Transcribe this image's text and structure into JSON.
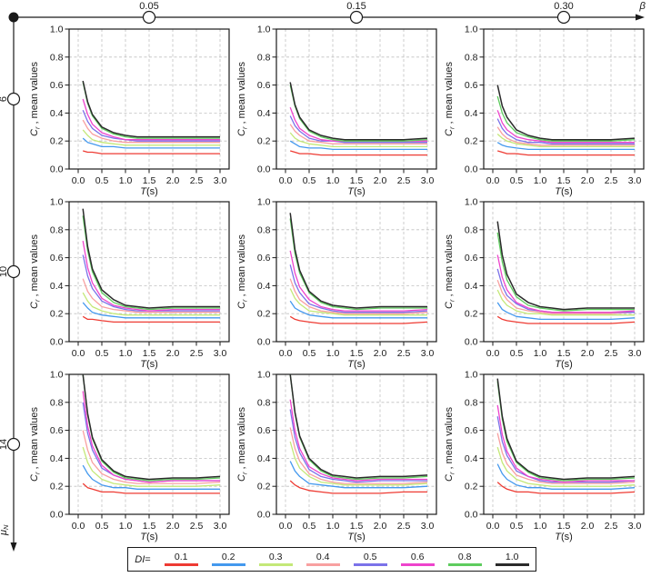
{
  "figure": {
    "beta_axis": {
      "symbol": "β",
      "tick_labels": [
        "0.05",
        "0.15",
        "0.30"
      ]
    },
    "mu_axis": {
      "symbol": "μ",
      "subscript": "N",
      "tick_labels": [
        "6",
        "10",
        "14"
      ]
    },
    "legend": {
      "prefix_symbol": "DI",
      "prefix_rest": "="
    }
  },
  "chart_data": {
    "type": "line",
    "grid": "dashed",
    "xlabel": {
      "sym": "T",
      "rest": "(s)"
    },
    "ylabel": {
      "sym": "C",
      "sub": "r",
      "rest": " , mean values"
    },
    "xlim": [
      0,
      3
    ],
    "ylim": [
      0,
      1
    ],
    "xtick_labels": [
      "0.0",
      "0.5",
      "1.0",
      "1.5",
      "2.0",
      "2.5",
      "3.0"
    ],
    "xtick_values": [
      0,
      0.5,
      1,
      1.5,
      2,
      2.5,
      3
    ],
    "ytick_labels": [
      "0.0",
      "0.2",
      "0.4",
      "0.6",
      "0.8",
      "1.0"
    ],
    "ytick_values": [
      0,
      0.2,
      0.4,
      0.6,
      0.8,
      1
    ],
    "series_labels": [
      "0.1",
      "0.2",
      "0.3",
      "0.4",
      "0.5",
      "0.6",
      "0.8",
      "1.0"
    ],
    "series_colors": [
      "#ee3b33",
      "#4499ee",
      "#c4e878",
      "#f8a0a0",
      "#7b72e9",
      "#ee44cc",
      "#5ecc5e",
      "#2b2b2b"
    ],
    "x": [
      0.1,
      0.2,
      0.3,
      0.5,
      0.75,
      1.0,
      1.25,
      1.5,
      2.0,
      2.5,
      3.0
    ],
    "charts": [
      {
        "mu": "6",
        "beta": "0.05",
        "values": [
          [
            0.13,
            0.12,
            0.12,
            0.11,
            0.11,
            0.11,
            0.11,
            0.11,
            0.11,
            0.11,
            0.11
          ],
          [
            0.22,
            0.19,
            0.18,
            0.16,
            0.16,
            0.15,
            0.15,
            0.15,
            0.15,
            0.15,
            0.15
          ],
          [
            0.28,
            0.24,
            0.21,
            0.19,
            0.18,
            0.17,
            0.17,
            0.17,
            0.17,
            0.17,
            0.17
          ],
          [
            0.35,
            0.29,
            0.25,
            0.22,
            0.2,
            0.19,
            0.19,
            0.19,
            0.19,
            0.19,
            0.19
          ],
          [
            0.42,
            0.34,
            0.29,
            0.24,
            0.22,
            0.21,
            0.2,
            0.2,
            0.2,
            0.2,
            0.2
          ],
          [
            0.5,
            0.39,
            0.32,
            0.26,
            0.23,
            0.21,
            0.21,
            0.21,
            0.21,
            0.21,
            0.21
          ],
          [
            0.62,
            0.47,
            0.38,
            0.29,
            0.25,
            0.23,
            0.22,
            0.22,
            0.22,
            0.22,
            0.22
          ],
          [
            0.63,
            0.48,
            0.39,
            0.3,
            0.26,
            0.24,
            0.23,
            0.23,
            0.23,
            0.23,
            0.23
          ]
        ]
      },
      {
        "mu": "6",
        "beta": "0.15",
        "values": [
          [
            0.13,
            0.12,
            0.11,
            0.11,
            0.1,
            0.1,
            0.1,
            0.1,
            0.1,
            0.1,
            0.1
          ],
          [
            0.2,
            0.18,
            0.16,
            0.15,
            0.15,
            0.14,
            0.14,
            0.14,
            0.14,
            0.14,
            0.14
          ],
          [
            0.26,
            0.22,
            0.2,
            0.18,
            0.17,
            0.16,
            0.16,
            0.16,
            0.16,
            0.16,
            0.16
          ],
          [
            0.32,
            0.27,
            0.24,
            0.2,
            0.19,
            0.18,
            0.18,
            0.18,
            0.18,
            0.18,
            0.18
          ],
          [
            0.38,
            0.31,
            0.27,
            0.22,
            0.2,
            0.2,
            0.19,
            0.19,
            0.19,
            0.19,
            0.19
          ],
          [
            0.44,
            0.35,
            0.29,
            0.24,
            0.21,
            0.2,
            0.2,
            0.2,
            0.2,
            0.2,
            0.2
          ],
          [
            0.6,
            0.45,
            0.36,
            0.27,
            0.23,
            0.21,
            0.2,
            0.2,
            0.2,
            0.2,
            0.21
          ],
          [
            0.62,
            0.46,
            0.37,
            0.28,
            0.24,
            0.22,
            0.21,
            0.21,
            0.21,
            0.21,
            0.22
          ]
        ]
      },
      {
        "mu": "6",
        "beta": "0.30",
        "values": [
          [
            0.13,
            0.12,
            0.11,
            0.11,
            0.1,
            0.1,
            0.1,
            0.1,
            0.1,
            0.1,
            0.1
          ],
          [
            0.19,
            0.17,
            0.16,
            0.15,
            0.14,
            0.14,
            0.14,
            0.14,
            0.14,
            0.14,
            0.14
          ],
          [
            0.25,
            0.22,
            0.2,
            0.18,
            0.17,
            0.16,
            0.16,
            0.16,
            0.16,
            0.16,
            0.16
          ],
          [
            0.3,
            0.25,
            0.22,
            0.19,
            0.18,
            0.17,
            0.17,
            0.17,
            0.17,
            0.17,
            0.17
          ],
          [
            0.36,
            0.29,
            0.25,
            0.21,
            0.19,
            0.19,
            0.18,
            0.18,
            0.18,
            0.18,
            0.18
          ],
          [
            0.42,
            0.33,
            0.28,
            0.23,
            0.21,
            0.2,
            0.19,
            0.19,
            0.19,
            0.19,
            0.19
          ],
          [
            0.52,
            0.4,
            0.33,
            0.26,
            0.23,
            0.21,
            0.2,
            0.2,
            0.2,
            0.2,
            0.21
          ],
          [
            0.6,
            0.45,
            0.37,
            0.28,
            0.24,
            0.22,
            0.21,
            0.21,
            0.21,
            0.21,
            0.22
          ]
        ]
      },
      {
        "mu": "10",
        "beta": "0.05",
        "values": [
          [
            0.18,
            0.16,
            0.16,
            0.15,
            0.14,
            0.14,
            0.14,
            0.14,
            0.14,
            0.14,
            0.14
          ],
          [
            0.28,
            0.24,
            0.21,
            0.19,
            0.18,
            0.17,
            0.17,
            0.17,
            0.17,
            0.17,
            0.17
          ],
          [
            0.35,
            0.29,
            0.25,
            0.22,
            0.2,
            0.19,
            0.19,
            0.19,
            0.19,
            0.19,
            0.19
          ],
          [
            0.45,
            0.36,
            0.31,
            0.25,
            0.23,
            0.22,
            0.21,
            0.21,
            0.21,
            0.21,
            0.21
          ],
          [
            0.62,
            0.47,
            0.38,
            0.29,
            0.25,
            0.23,
            0.22,
            0.22,
            0.22,
            0.22,
            0.22
          ],
          [
            0.72,
            0.53,
            0.42,
            0.31,
            0.26,
            0.24,
            0.23,
            0.22,
            0.23,
            0.23,
            0.23
          ],
          [
            0.9,
            0.65,
            0.5,
            0.35,
            0.28,
            0.25,
            0.24,
            0.23,
            0.24,
            0.24,
            0.24
          ],
          [
            0.95,
            0.68,
            0.52,
            0.37,
            0.3,
            0.26,
            0.25,
            0.24,
            0.25,
            0.25,
            0.25
          ]
        ]
      },
      {
        "mu": "10",
        "beta": "0.15",
        "values": [
          [
            0.18,
            0.16,
            0.15,
            0.14,
            0.13,
            0.13,
            0.13,
            0.13,
            0.13,
            0.13,
            0.14
          ],
          [
            0.29,
            0.24,
            0.22,
            0.19,
            0.18,
            0.17,
            0.17,
            0.17,
            0.17,
            0.17,
            0.17
          ],
          [
            0.38,
            0.31,
            0.27,
            0.22,
            0.21,
            0.2,
            0.19,
            0.19,
            0.19,
            0.19,
            0.19
          ],
          [
            0.45,
            0.36,
            0.3,
            0.25,
            0.22,
            0.21,
            0.2,
            0.2,
            0.2,
            0.2,
            0.21
          ],
          [
            0.55,
            0.42,
            0.35,
            0.27,
            0.24,
            0.22,
            0.21,
            0.21,
            0.21,
            0.21,
            0.22
          ],
          [
            0.65,
            0.49,
            0.39,
            0.3,
            0.25,
            0.23,
            0.22,
            0.22,
            0.22,
            0.22,
            0.23
          ],
          [
            0.88,
            0.63,
            0.49,
            0.35,
            0.28,
            0.25,
            0.24,
            0.23,
            0.24,
            0.24,
            0.24
          ],
          [
            0.92,
            0.66,
            0.51,
            0.36,
            0.29,
            0.26,
            0.25,
            0.24,
            0.25,
            0.25,
            0.25
          ]
        ]
      },
      {
        "mu": "10",
        "beta": "0.30",
        "values": [
          [
            0.18,
            0.16,
            0.15,
            0.14,
            0.13,
            0.13,
            0.13,
            0.13,
            0.13,
            0.13,
            0.14
          ],
          [
            0.28,
            0.23,
            0.21,
            0.18,
            0.17,
            0.16,
            0.16,
            0.16,
            0.16,
            0.16,
            0.17
          ],
          [
            0.37,
            0.3,
            0.26,
            0.22,
            0.2,
            0.2,
            0.19,
            0.19,
            0.19,
            0.19,
            0.19
          ],
          [
            0.44,
            0.35,
            0.3,
            0.24,
            0.22,
            0.21,
            0.2,
            0.2,
            0.2,
            0.2,
            0.21
          ],
          [
            0.52,
            0.4,
            0.33,
            0.27,
            0.23,
            0.22,
            0.21,
            0.21,
            0.21,
            0.21,
            0.21
          ],
          [
            0.62,
            0.46,
            0.37,
            0.28,
            0.24,
            0.22,
            0.21,
            0.21,
            0.21,
            0.21,
            0.22
          ],
          [
            0.78,
            0.57,
            0.44,
            0.32,
            0.26,
            0.24,
            0.23,
            0.22,
            0.23,
            0.23,
            0.23
          ],
          [
            0.86,
            0.62,
            0.48,
            0.34,
            0.28,
            0.25,
            0.24,
            0.23,
            0.24,
            0.24,
            0.24
          ]
        ]
      },
      {
        "mu": "14",
        "beta": "0.05",
        "values": [
          [
            0.22,
            0.19,
            0.18,
            0.16,
            0.16,
            0.15,
            0.15,
            0.15,
            0.15,
            0.15,
            0.15
          ],
          [
            0.35,
            0.29,
            0.25,
            0.21,
            0.19,
            0.19,
            0.18,
            0.18,
            0.18,
            0.18,
            0.18
          ],
          [
            0.48,
            0.37,
            0.31,
            0.25,
            0.22,
            0.21,
            0.2,
            0.2,
            0.2,
            0.2,
            0.21
          ],
          [
            0.6,
            0.46,
            0.37,
            0.29,
            0.25,
            0.23,
            0.22,
            0.22,
            0.22,
            0.22,
            0.23
          ],
          [
            0.8,
            0.58,
            0.46,
            0.33,
            0.28,
            0.25,
            0.24,
            0.23,
            0.24,
            0.24,
            0.24
          ],
          [
            0.88,
            0.63,
            0.49,
            0.35,
            0.28,
            0.25,
            0.24,
            0.23,
            0.24,
            0.24,
            0.24
          ],
          [
            1.0,
            0.71,
            0.54,
            0.38,
            0.3,
            0.26,
            0.25,
            0.24,
            0.25,
            0.25,
            0.26
          ],
          [
            1.0,
            0.72,
            0.55,
            0.39,
            0.31,
            0.27,
            0.26,
            0.25,
            0.26,
            0.26,
            0.27
          ]
        ]
      },
      {
        "mu": "14",
        "beta": "0.15",
        "values": [
          [
            0.24,
            0.21,
            0.19,
            0.17,
            0.16,
            0.15,
            0.15,
            0.15,
            0.15,
            0.16,
            0.16
          ],
          [
            0.38,
            0.31,
            0.27,
            0.22,
            0.21,
            0.2,
            0.19,
            0.19,
            0.19,
            0.19,
            0.2
          ],
          [
            0.52,
            0.4,
            0.33,
            0.27,
            0.23,
            0.22,
            0.21,
            0.21,
            0.21,
            0.21,
            0.22
          ],
          [
            0.62,
            0.47,
            0.38,
            0.29,
            0.25,
            0.23,
            0.22,
            0.22,
            0.22,
            0.22,
            0.23
          ],
          [
            0.75,
            0.55,
            0.44,
            0.32,
            0.27,
            0.25,
            0.24,
            0.23,
            0.24,
            0.24,
            0.24
          ],
          [
            0.82,
            0.6,
            0.47,
            0.34,
            0.29,
            0.26,
            0.25,
            0.24,
            0.25,
            0.25,
            0.25
          ],
          [
            1.0,
            0.72,
            0.55,
            0.39,
            0.31,
            0.27,
            0.26,
            0.25,
            0.26,
            0.26,
            0.27
          ],
          [
            1.0,
            0.73,
            0.56,
            0.4,
            0.32,
            0.28,
            0.27,
            0.26,
            0.27,
            0.27,
            0.28
          ]
        ]
      },
      {
        "mu": "14",
        "beta": "0.30",
        "values": [
          [
            0.23,
            0.2,
            0.18,
            0.16,
            0.16,
            0.15,
            0.15,
            0.15,
            0.15,
            0.15,
            0.16
          ],
          [
            0.36,
            0.29,
            0.25,
            0.21,
            0.19,
            0.19,
            0.18,
            0.18,
            0.18,
            0.18,
            0.19
          ],
          [
            0.48,
            0.37,
            0.31,
            0.25,
            0.22,
            0.21,
            0.2,
            0.2,
            0.2,
            0.2,
            0.21
          ],
          [
            0.58,
            0.44,
            0.36,
            0.28,
            0.25,
            0.23,
            0.22,
            0.22,
            0.22,
            0.22,
            0.23
          ],
          [
            0.7,
            0.52,
            0.42,
            0.31,
            0.27,
            0.24,
            0.23,
            0.23,
            0.23,
            0.23,
            0.24
          ],
          [
            0.78,
            0.57,
            0.45,
            0.33,
            0.27,
            0.25,
            0.24,
            0.23,
            0.24,
            0.24,
            0.24
          ],
          [
            0.95,
            0.68,
            0.52,
            0.37,
            0.3,
            0.26,
            0.25,
            0.24,
            0.25,
            0.25,
            0.26
          ],
          [
            0.97,
            0.7,
            0.54,
            0.38,
            0.31,
            0.27,
            0.26,
            0.25,
            0.26,
            0.26,
            0.27
          ]
        ]
      }
    ]
  }
}
